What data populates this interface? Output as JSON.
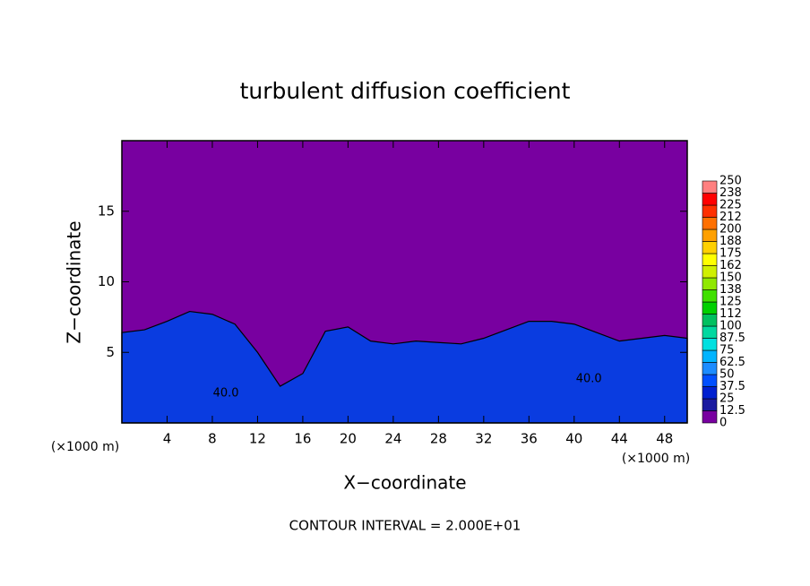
{
  "chart_data": {
    "type": "contour",
    "title": "turbulent diffusion coefficient",
    "x_label": "X−coordinate",
    "y_label": "Z−coordinate",
    "x_unit_left": "(×1000 m)",
    "x_unit_right": "(×1000 m)",
    "footer": "CONTOUR INTERVAL = 2.000E+01",
    "xlim": [
      0,
      50
    ],
    "ylim": [
      0,
      20
    ],
    "xticks": [
      4,
      8,
      12,
      16,
      20,
      24,
      28,
      32,
      36,
      40,
      44,
      48
    ],
    "yticks": [
      5,
      10,
      15
    ],
    "background_color": "#7800a0",
    "layer_top": {
      "color": "#0a3ce0",
      "x": [
        0,
        2,
        4,
        6,
        8,
        10,
        12,
        14,
        16,
        18,
        20,
        22,
        24,
        26,
        28,
        30,
        32,
        34,
        36,
        38,
        40,
        42,
        44,
        46,
        48,
        50
      ],
      "z": [
        6.4,
        6.6,
        7.2,
        7.9,
        7.7,
        7.0,
        5.0,
        2.6,
        3.5,
        6.5,
        6.8,
        5.8,
        5.6,
        5.8,
        5.7,
        5.6,
        6.0,
        6.6,
        7.2,
        7.2,
        7.0,
        6.4,
        5.8,
        6.0,
        6.2,
        6.0
      ]
    },
    "annotations": [
      {
        "text": "40.0",
        "x": 9.2,
        "y": 2.1
      },
      {
        "text": "40.0",
        "x": 41.3,
        "y": 3.1
      }
    ],
    "colorbar": {
      "levels": [
        0,
        12.5,
        25,
        37.5,
        50,
        62.5,
        75,
        87.5,
        100,
        112,
        125,
        138,
        150,
        162,
        175,
        188,
        200,
        212,
        225,
        238,
        250
      ],
      "colors": [
        "#7800a0",
        "#1a1aa0",
        "#0020d0",
        "#0050ff",
        "#1c8cff",
        "#00b4ff",
        "#00e0e0",
        "#00d8a0",
        "#00c060",
        "#00d000",
        "#40e000",
        "#90e800",
        "#d0f000",
        "#ffff00",
        "#ffd000",
        "#ffa000",
        "#ff7000",
        "#ff3000",
        "#ff0000",
        "#ff8080"
      ]
    }
  }
}
